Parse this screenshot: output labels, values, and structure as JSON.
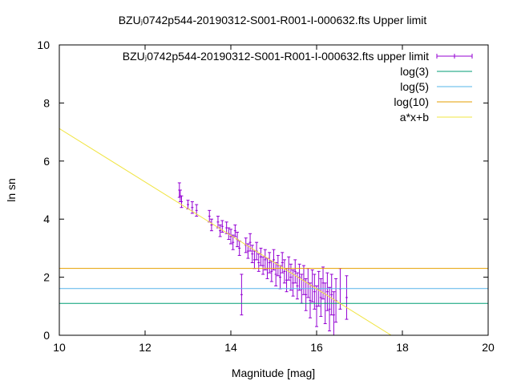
{
  "chart_data": {
    "type": "scatter",
    "title": "BZUⱼ0742p544-20190312-S001-R001-I-000632.fts Upper limit",
    "xlabel": "Magnitude [mag]",
    "ylabel": "ln sn",
    "xlim": [
      10,
      20
    ],
    "ylim": [
      0,
      10
    ],
    "xticks": [
      "10",
      "12",
      "14",
      "16",
      "18",
      "20"
    ],
    "yticks": [
      "0",
      "2",
      "4",
      "6",
      "8",
      "10"
    ],
    "grid": false,
    "legend_position": "top-right",
    "series": [
      {
        "name": "BZUⱼ0742p544-20190312-S001-R001-I-000632.fts upper limit",
        "kind": "errorbars",
        "color": "#9400d3",
        "points": [
          [
            12.8,
            5.0,
            0.25
          ],
          [
            12.82,
            4.8,
            0.2
          ],
          [
            12.85,
            4.6,
            0.2
          ],
          [
            13.0,
            4.5,
            0.15
          ],
          [
            13.1,
            4.4,
            0.2
          ],
          [
            13.2,
            4.3,
            0.2
          ],
          [
            13.5,
            4.1,
            0.2
          ],
          [
            13.55,
            3.8,
            0.2
          ],
          [
            13.7,
            3.9,
            0.2
          ],
          [
            13.75,
            3.6,
            0.2
          ],
          [
            13.8,
            3.75,
            0.2
          ],
          [
            13.9,
            3.7,
            0.2
          ],
          [
            13.95,
            3.5,
            0.2
          ],
          [
            14.0,
            3.4,
            0.25
          ],
          [
            14.05,
            3.2,
            0.25
          ],
          [
            14.1,
            3.6,
            0.2
          ],
          [
            14.15,
            3.3,
            0.25
          ],
          [
            14.2,
            3.0,
            0.25
          ],
          [
            14.25,
            1.4,
            0.7
          ],
          [
            14.35,
            3.1,
            0.25
          ],
          [
            14.4,
            2.9,
            0.25
          ],
          [
            14.45,
            3.2,
            0.3
          ],
          [
            14.5,
            2.8,
            0.3
          ],
          [
            14.55,
            2.6,
            0.3
          ],
          [
            14.6,
            2.9,
            0.3
          ],
          [
            14.65,
            2.5,
            0.3
          ],
          [
            14.7,
            2.7,
            0.3
          ],
          [
            14.75,
            2.4,
            0.3
          ],
          [
            14.8,
            2.6,
            0.35
          ],
          [
            14.85,
            2.3,
            0.35
          ],
          [
            14.9,
            2.5,
            0.35
          ],
          [
            14.95,
            2.2,
            0.35
          ],
          [
            15.0,
            2.6,
            0.35
          ],
          [
            15.05,
            2.1,
            0.4
          ],
          [
            15.1,
            2.4,
            0.35
          ],
          [
            15.15,
            2.0,
            0.4
          ],
          [
            15.2,
            2.5,
            0.35
          ],
          [
            15.25,
            2.2,
            0.4
          ],
          [
            15.3,
            1.9,
            0.4
          ],
          [
            15.35,
            2.3,
            0.4
          ],
          [
            15.4,
            2.0,
            0.45
          ],
          [
            15.45,
            1.8,
            0.45
          ],
          [
            15.5,
            2.2,
            0.4
          ],
          [
            15.55,
            1.7,
            0.45
          ],
          [
            15.6,
            2.0,
            0.45
          ],
          [
            15.65,
            1.6,
            0.5
          ],
          [
            15.7,
            1.9,
            0.5
          ],
          [
            15.75,
            1.4,
            0.55
          ],
          [
            15.8,
            1.8,
            0.5
          ],
          [
            15.85,
            1.2,
            0.6
          ],
          [
            15.9,
            1.7,
            0.55
          ],
          [
            15.95,
            1.5,
            0.6
          ],
          [
            16.0,
            1.0,
            0.7
          ],
          [
            16.05,
            1.6,
            0.6
          ],
          [
            16.1,
            1.3,
            0.65
          ],
          [
            16.15,
            1.8,
            0.55
          ],
          [
            16.2,
            1.1,
            0.7
          ],
          [
            16.25,
            1.5,
            0.65
          ],
          [
            16.3,
            0.9,
            0.75
          ],
          [
            16.35,
            1.4,
            0.7
          ],
          [
            16.4,
            0.7,
            0.8
          ],
          [
            16.45,
            1.2,
            0.75
          ],
          [
            16.55,
            1.6,
            0.7
          ],
          [
            16.7,
            1.3,
            0.75
          ]
        ]
      },
      {
        "name": "log(3)",
        "kind": "hline",
        "y": 1.0986,
        "color": "#009e73"
      },
      {
        "name": "log(5)",
        "kind": "hline",
        "y": 1.6094,
        "color": "#56b4e9"
      },
      {
        "name": "log(10)",
        "kind": "hline",
        "y": 2.3026,
        "color": "#e69f00"
      },
      {
        "name": "a*x+b",
        "kind": "fit",
        "a": -0.92,
        "b": 16.32,
        "color": "#f0e442"
      }
    ]
  }
}
